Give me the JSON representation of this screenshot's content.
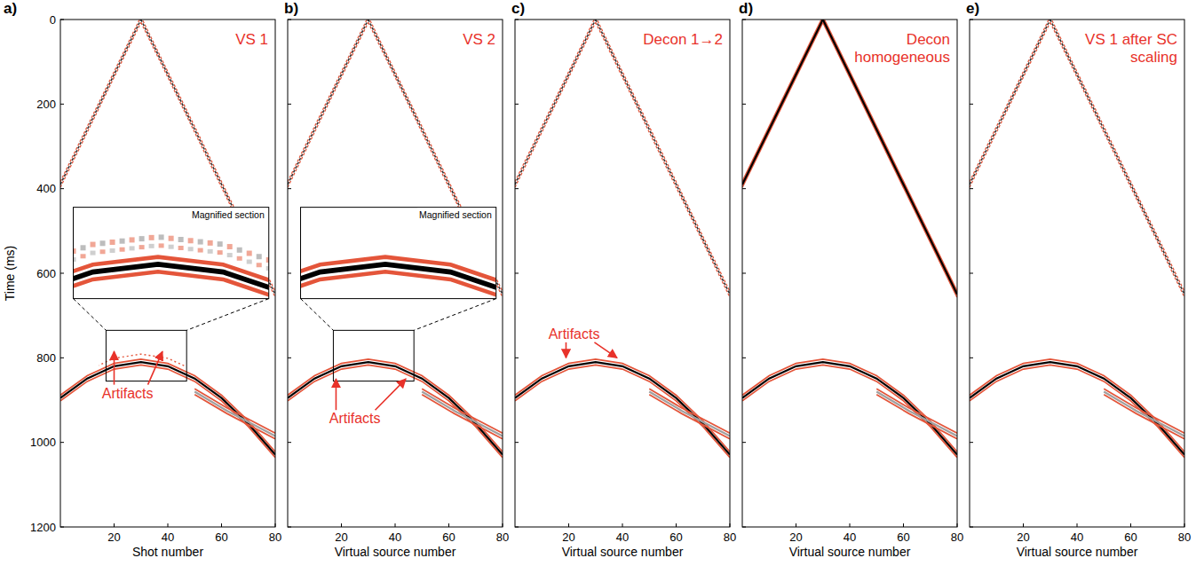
{
  "chart_data": [
    {
      "panel": "a)",
      "type": "line",
      "title": "VS 1",
      "x_label": "Shot number",
      "y_label": "Time (ms)",
      "xlim": [
        0,
        80
      ],
      "ylim": [
        1200,
        0
      ],
      "xticks": [
        20,
        40,
        60,
        80
      ],
      "yticks": [
        0,
        200,
        400,
        600,
        800,
        1000,
        1200
      ],
      "series": [
        {
          "color": "#333333",
          "line_style": "dotted",
          "x": [
            0,
            30
          ],
          "values": [
            390,
            0
          ]
        },
        {
          "color": "#333333",
          "line_style": "dotted",
          "x": [
            30,
            80
          ],
          "values": [
            0,
            650
          ]
        },
        {
          "color": "#000000",
          "line_style": "solid",
          "x": [
            0,
            10,
            20,
            30,
            40,
            50,
            60,
            70,
            80
          ],
          "values": [
            895,
            849,
            820,
            810,
            820,
            849,
            895,
            956,
            1029
          ]
        },
        {
          "color": "#a0a0a0",
          "line_style": "solid",
          "x": [
            50,
            62,
            80
          ],
          "values": [
            880,
            925,
            985
          ]
        }
      ],
      "annotations": [
        {
          "text": "Artifacts",
          "x": 25,
          "y": 895,
          "targets": [
            [
              20,
              785
            ],
            [
              38,
              785
            ]
          ]
        }
      ],
      "inset": {
        "title": "Magnified section",
        "xlim": [
          17,
          47
        ],
        "ylim": [
          855,
          735
        ]
      }
    },
    {
      "panel": "b)",
      "type": "line",
      "title": "VS 2",
      "x_label": "Virtual source number",
      "tick_labels": "x",
      "xlim": [
        0,
        80
      ],
      "ylim": [
        1200,
        0
      ],
      "xticks": [
        20,
        40,
        60,
        80
      ],
      "yticks": [
        0,
        200,
        400,
        600,
        800,
        1000,
        1200
      ],
      "series": [
        {
          "color": "#333333",
          "line_style": "dotted",
          "x": [
            0,
            30
          ],
          "values": [
            390,
            0
          ]
        },
        {
          "color": "#333333",
          "line_style": "dotted",
          "x": [
            30,
            80
          ],
          "values": [
            0,
            650
          ]
        },
        {
          "color": "#000000",
          "line_style": "solid",
          "x": [
            0,
            10,
            20,
            30,
            40,
            50,
            60,
            70,
            80
          ],
          "values": [
            895,
            849,
            820,
            810,
            820,
            849,
            895,
            956,
            1029
          ]
        },
        {
          "color": "#a0a0a0",
          "line_style": "solid",
          "x": [
            50,
            62,
            80
          ],
          "values": [
            880,
            925,
            985
          ]
        }
      ],
      "annotations": [
        {
          "text": "Artifacts",
          "x": 25,
          "y": 955,
          "targets": [
            [
              18,
              850
            ],
            [
              44,
              850
            ]
          ]
        }
      ],
      "inset": {
        "title": "Magnified section",
        "xlim": [
          17,
          47
        ],
        "ylim": [
          855,
          735
        ]
      }
    },
    {
      "panel": "c)",
      "type": "line",
      "title": "Decon 1→2",
      "x_label": "Virtual source number",
      "tick_labels": "x",
      "xlim": [
        0,
        80
      ],
      "ylim": [
        1200,
        0
      ],
      "xticks": [
        20,
        40,
        60,
        80
      ],
      "yticks": [
        0,
        200,
        400,
        600,
        800,
        1000,
        1200
      ],
      "series": [
        {
          "color": "#333333",
          "line_style": "dotted",
          "x": [
            0,
            30
          ],
          "values": [
            390,
            0
          ]
        },
        {
          "color": "#333333",
          "line_style": "dotted",
          "x": [
            30,
            80
          ],
          "values": [
            0,
            650
          ]
        },
        {
          "color": "#000000",
          "line_style": "solid",
          "x": [
            0,
            10,
            20,
            30,
            40,
            50,
            60,
            70,
            80
          ],
          "values": [
            895,
            849,
            820,
            810,
            820,
            849,
            895,
            956,
            1029
          ]
        },
        {
          "color": "#a0a0a0",
          "line_style": "solid",
          "x": [
            50,
            62,
            80
          ],
          "values": [
            880,
            925,
            985
          ]
        }
      ],
      "annotations": [
        {
          "text": "Artifacts",
          "x": 22,
          "y": 755,
          "targets": [
            [
              19,
              800
            ],
            [
              38,
              800
            ]
          ]
        }
      ]
    },
    {
      "panel": "d)",
      "type": "line",
      "title": "Decon homogeneous",
      "x_label": "Virtual source number",
      "tick_labels": "x",
      "xlim": [
        0,
        80
      ],
      "ylim": [
        1200,
        0
      ],
      "xticks": [
        20,
        40,
        60,
        80
      ],
      "yticks": [
        0,
        200,
        400,
        600,
        800,
        1000,
        1200
      ],
      "series": [
        {
          "color": "#000000",
          "line_style": "solid",
          "x": [
            0,
            30
          ],
          "values": [
            390,
            0
          ]
        },
        {
          "color": "#000000",
          "line_style": "solid",
          "x": [
            30,
            80
          ],
          "values": [
            0,
            650
          ]
        },
        {
          "color": "#000000",
          "line_style": "solid",
          "x": [
            0,
            10,
            20,
            30,
            40,
            50,
            60,
            70,
            80
          ],
          "values": [
            895,
            849,
            820,
            810,
            820,
            849,
            895,
            956,
            1029
          ]
        },
        {
          "color": "#a0a0a0",
          "line_style": "solid",
          "x": [
            50,
            62,
            80
          ],
          "values": [
            880,
            925,
            985
          ]
        }
      ]
    },
    {
      "panel": "e)",
      "type": "line",
      "title": "VS 1 after SC scaling",
      "x_label": "Virtual source number",
      "tick_labels": "x",
      "xlim": [
        0,
        80
      ],
      "ylim": [
        1200,
        0
      ],
      "xticks": [
        20,
        40,
        60,
        80
      ],
      "yticks": [
        0,
        200,
        400,
        600,
        800,
        1000,
        1200
      ],
      "series": [
        {
          "color": "#333333",
          "line_style": "dotted",
          "x": [
            0,
            30
          ],
          "values": [
            390,
            0
          ]
        },
        {
          "color": "#333333",
          "line_style": "dotted",
          "x": [
            30,
            80
          ],
          "values": [
            0,
            650
          ]
        },
        {
          "color": "#000000",
          "line_style": "solid",
          "x": [
            0,
            10,
            20,
            30,
            40,
            50,
            60,
            70,
            80
          ],
          "values": [
            895,
            849,
            820,
            810,
            820,
            849,
            895,
            956,
            1029
          ]
        },
        {
          "color": "#a0a0a0",
          "line_style": "solid",
          "x": [
            50,
            62,
            80
          ],
          "values": [
            880,
            925,
            985
          ]
        }
      ]
    }
  ]
}
